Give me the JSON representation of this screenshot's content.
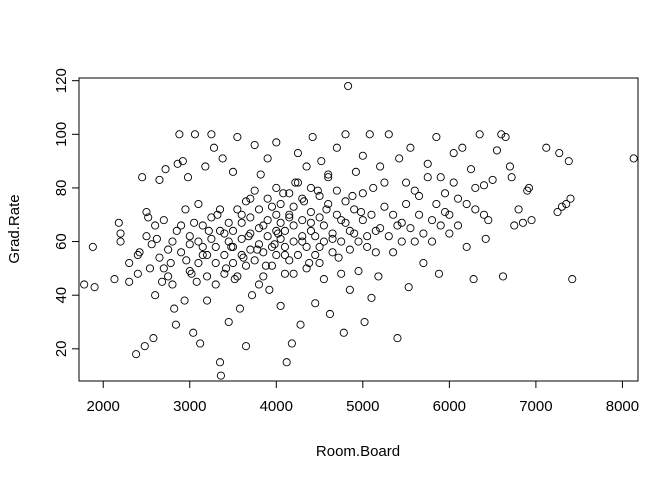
{
  "chart_data": {
    "type": "scatter",
    "title": "",
    "xlabel": "Room.Board",
    "ylabel": "Grad.Rate",
    "xlim": [
      1720,
      8180
    ],
    "ylim": [
      8,
      121
    ],
    "xticks": [
      2000,
      3000,
      4000,
      5000,
      6000,
      7000,
      8000
    ],
    "yticks": [
      20,
      40,
      60,
      80,
      100,
      120
    ],
    "grid": false,
    "legend": "none",
    "marker": "open-circle",
    "series": [
      {
        "points": [
          [
            1780,
            44
          ],
          [
            1880,
            58
          ],
          [
            1900,
            43
          ],
          [
            2130,
            46
          ],
          [
            2180,
            67
          ],
          [
            2200,
            63
          ],
          [
            2300,
            45
          ],
          [
            2380,
            18
          ],
          [
            2400,
            55
          ],
          [
            2420,
            56
          ],
          [
            2450,
            84
          ],
          [
            2480,
            21
          ],
          [
            2500,
            71
          ],
          [
            2520,
            69
          ],
          [
            2540,
            50
          ],
          [
            2560,
            59
          ],
          [
            2580,
            24
          ],
          [
            2600,
            40
          ],
          [
            2620,
            61
          ],
          [
            2650,
            83
          ],
          [
            2680,
            45
          ],
          [
            2700,
            50
          ],
          [
            2720,
            87
          ],
          [
            2750,
            57
          ],
          [
            2780,
            52
          ],
          [
            2800,
            44
          ],
          [
            2820,
            35
          ],
          [
            2840,
            29
          ],
          [
            2860,
            89
          ],
          [
            2880,
            100
          ],
          [
            2900,
            66
          ],
          [
            2920,
            90
          ],
          [
            2940,
            38
          ],
          [
            2960,
            53
          ],
          [
            2980,
            84
          ],
          [
            3000,
            59
          ],
          [
            3020,
            48
          ],
          [
            3040,
            26
          ],
          [
            3060,
            100
          ],
          [
            3080,
            45
          ],
          [
            3100,
            74
          ],
          [
            3120,
            22
          ],
          [
            3150,
            55
          ],
          [
            3180,
            88
          ],
          [
            3200,
            38
          ],
          [
            3220,
            64
          ],
          [
            3250,
            100
          ],
          [
            3280,
            95
          ],
          [
            3300,
            44
          ],
          [
            3320,
            70
          ],
          [
            3350,
            15
          ],
          [
            3360,
            10
          ],
          [
            3380,
            91
          ],
          [
            3400,
            63
          ],
          [
            3420,
            50
          ],
          [
            3450,
            30
          ],
          [
            3480,
            58
          ],
          [
            3500,
            86
          ],
          [
            3520,
            46
          ],
          [
            3550,
            99
          ],
          [
            3580,
            35
          ],
          [
            3600,
            70
          ],
          [
            3620,
            54
          ],
          [
            3650,
            21
          ],
          [
            3680,
            62
          ],
          [
            3700,
            76
          ],
          [
            3720,
            40
          ],
          [
            3750,
            96
          ],
          [
            3780,
            57
          ],
          [
            3800,
            44
          ],
          [
            3820,
            85
          ],
          [
            3850,
            66
          ],
          [
            3880,
            51
          ],
          [
            3900,
            91
          ],
          [
            3920,
            42
          ],
          [
            3950,
            73
          ],
          [
            3980,
            59
          ],
          [
            4000,
            97
          ],
          [
            4020,
            63
          ],
          [
            4050,
            36
          ],
          [
            4080,
            78
          ],
          [
            4100,
            55
          ],
          [
            4120,
            15
          ],
          [
            4150,
            69
          ],
          [
            4180,
            22
          ],
          [
            4200,
            48
          ],
          [
            4220,
            82
          ],
          [
            4250,
            93
          ],
          [
            4280,
            29
          ],
          [
            4300,
            60
          ],
          [
            4320,
            75
          ],
          [
            4350,
            88
          ],
          [
            4380,
            52
          ],
          [
            4400,
            67
          ],
          [
            4420,
            99
          ],
          [
            4450,
            37
          ],
          [
            4480,
            79
          ],
          [
            4500,
            58
          ],
          [
            4520,
            90
          ],
          [
            4550,
            46
          ],
          [
            4580,
            72
          ],
          [
            4600,
            84
          ],
          [
            4620,
            33
          ],
          [
            4650,
            61
          ],
          [
            4700,
            95
          ],
          [
            4720,
            54
          ],
          [
            4750,
            68
          ],
          [
            4780,
            26
          ],
          [
            4800,
            100
          ],
          [
            4830,
            118
          ],
          [
            4850,
            42
          ],
          [
            4880,
            77
          ],
          [
            4900,
            63
          ],
          [
            4920,
            86
          ],
          [
            4950,
            49
          ],
          [
            4980,
            71
          ],
          [
            5000,
            92
          ],
          [
            5020,
            30
          ],
          [
            5050,
            58
          ],
          [
            5080,
            100
          ],
          [
            5100,
            39
          ],
          [
            5120,
            80
          ],
          [
            5150,
            64
          ],
          [
            5180,
            47
          ],
          [
            5200,
            88
          ],
          [
            5250,
            73
          ],
          [
            5300,
            100
          ],
          [
            5350,
            56
          ],
          [
            5400,
            24
          ],
          [
            5420,
            91
          ],
          [
            5450,
            67
          ],
          [
            5500,
            82
          ],
          [
            5530,
            43
          ],
          [
            5550,
            95
          ],
          [
            5600,
            60
          ],
          [
            5650,
            77
          ],
          [
            5700,
            52
          ],
          [
            5750,
            89
          ],
          [
            5800,
            68
          ],
          [
            5850,
            99
          ],
          [
            5880,
            48
          ],
          [
            5900,
            84
          ],
          [
            5950,
            71
          ],
          [
            6000,
            63
          ],
          [
            6050,
            93
          ],
          [
            6100,
            76
          ],
          [
            6150,
            95
          ],
          [
            6200,
            58
          ],
          [
            6250,
            87
          ],
          [
            6280,
            46
          ],
          [
            6300,
            72
          ],
          [
            6350,
            100
          ],
          [
            6400,
            81
          ],
          [
            6420,
            61
          ],
          [
            6450,
            68
          ],
          [
            6500,
            83
          ],
          [
            6550,
            94
          ],
          [
            6600,
            100
          ],
          [
            6620,
            47
          ],
          [
            6650,
            99
          ],
          [
            6700,
            88
          ],
          [
            6720,
            84
          ],
          [
            6750,
            66
          ],
          [
            6800,
            72
          ],
          [
            6850,
            67
          ],
          [
            6900,
            79
          ],
          [
            6920,
            80
          ],
          [
            6950,
            68
          ],
          [
            7120,
            95
          ],
          [
            7250,
            71
          ],
          [
            7270,
            93
          ],
          [
            7300,
            73
          ],
          [
            7350,
            74
          ],
          [
            7380,
            90
          ],
          [
            7400,
            76
          ],
          [
            7420,
            46
          ],
          [
            8130,
            91
          ],
          [
            2200,
            60
          ],
          [
            2300,
            52
          ],
          [
            2400,
            48
          ],
          [
            2500,
            62
          ],
          [
            2600,
            66
          ],
          [
            2650,
            54
          ],
          [
            2700,
            68
          ],
          [
            2750,
            47
          ],
          [
            2800,
            60
          ],
          [
            2850,
            64
          ],
          [
            2900,
            56
          ],
          [
            2950,
            72
          ],
          [
            3000,
            49
          ],
          [
            3000,
            62
          ],
          [
            3050,
            67
          ],
          [
            3100,
            52
          ],
          [
            3100,
            60
          ],
          [
            3150,
            58
          ],
          [
            3150,
            66
          ],
          [
            3200,
            47
          ],
          [
            3200,
            55
          ],
          [
            3250,
            61
          ],
          [
            3250,
            69
          ],
          [
            3300,
            52
          ],
          [
            3300,
            58
          ],
          [
            3350,
            64
          ],
          [
            3350,
            72
          ],
          [
            3400,
            48
          ],
          [
            3400,
            55
          ],
          [
            3450,
            60
          ],
          [
            3450,
            67
          ],
          [
            3500,
            52
          ],
          [
            3500,
            58
          ],
          [
            3500,
            64
          ],
          [
            3550,
            72
          ],
          [
            3550,
            47
          ],
          [
            3600,
            55
          ],
          [
            3600,
            61
          ],
          [
            3600,
            67
          ],
          [
            3650,
            75
          ],
          [
            3650,
            51
          ],
          [
            3700,
            57
          ],
          [
            3700,
            63
          ],
          [
            3700,
            69
          ],
          [
            3750,
            79
          ],
          [
            3750,
            53
          ],
          [
            3800,
            59
          ],
          [
            3800,
            65
          ],
          [
            3800,
            72
          ],
          [
            3850,
            47
          ],
          [
            3850,
            56
          ],
          [
            3900,
            62
          ],
          [
            3900,
            68
          ],
          [
            3900,
            76
          ],
          [
            3950,
            51
          ],
          [
            3950,
            58
          ],
          [
            4000,
            64
          ],
          [
            4000,
            70
          ],
          [
            4000,
            80
          ],
          [
            4000,
            55
          ],
          [
            4050,
            61
          ],
          [
            4050,
            67
          ],
          [
            4050,
            74
          ],
          [
            4100,
            48
          ],
          [
            4100,
            58
          ],
          [
            4100,
            64
          ],
          [
            4150,
            70
          ],
          [
            4150,
            78
          ],
          [
            4150,
            53
          ],
          [
            4200,
            60
          ],
          [
            4200,
            66
          ],
          [
            4200,
            73
          ],
          [
            4250,
            82
          ],
          [
            4250,
            55
          ],
          [
            4300,
            62
          ],
          [
            4300,
            68
          ],
          [
            4300,
            76
          ],
          [
            4350,
            50
          ],
          [
            4350,
            58
          ],
          [
            4400,
            64
          ],
          [
            4400,
            71
          ],
          [
            4400,
            80
          ],
          [
            4450,
            55
          ],
          [
            4450,
            62
          ],
          [
            4500,
            69
          ],
          [
            4500,
            77
          ],
          [
            4500,
            52
          ],
          [
            4550,
            60
          ],
          [
            4550,
            66
          ],
          [
            4600,
            74
          ],
          [
            4600,
            85
          ],
          [
            4650,
            56
          ],
          [
            4650,
            63
          ],
          [
            4700,
            70
          ],
          [
            4700,
            79
          ],
          [
            4750,
            48
          ],
          [
            4750,
            60
          ],
          [
            4800,
            67
          ],
          [
            4800,
            75
          ],
          [
            4850,
            57
          ],
          [
            4850,
            64
          ],
          [
            4900,
            72
          ],
          [
            4950,
            60
          ],
          [
            5000,
            68
          ],
          [
            5000,
            78
          ],
          [
            5050,
            62
          ],
          [
            5100,
            70
          ],
          [
            5150,
            56
          ],
          [
            5200,
            65
          ],
          [
            5250,
            82
          ],
          [
            5300,
            62
          ],
          [
            5350,
            70
          ],
          [
            5400,
            66
          ],
          [
            5450,
            60
          ],
          [
            5500,
            74
          ],
          [
            5550,
            65
          ],
          [
            5600,
            79
          ],
          [
            5650,
            70
          ],
          [
            5700,
            63
          ],
          [
            5750,
            84
          ],
          [
            5800,
            60
          ],
          [
            5850,
            74
          ],
          [
            5900,
            66
          ],
          [
            5950,
            78
          ],
          [
            6000,
            70
          ],
          [
            6050,
            82
          ],
          [
            6100,
            66
          ],
          [
            6200,
            74
          ],
          [
            6300,
            80
          ],
          [
            6400,
            70
          ]
        ]
      }
    ]
  }
}
